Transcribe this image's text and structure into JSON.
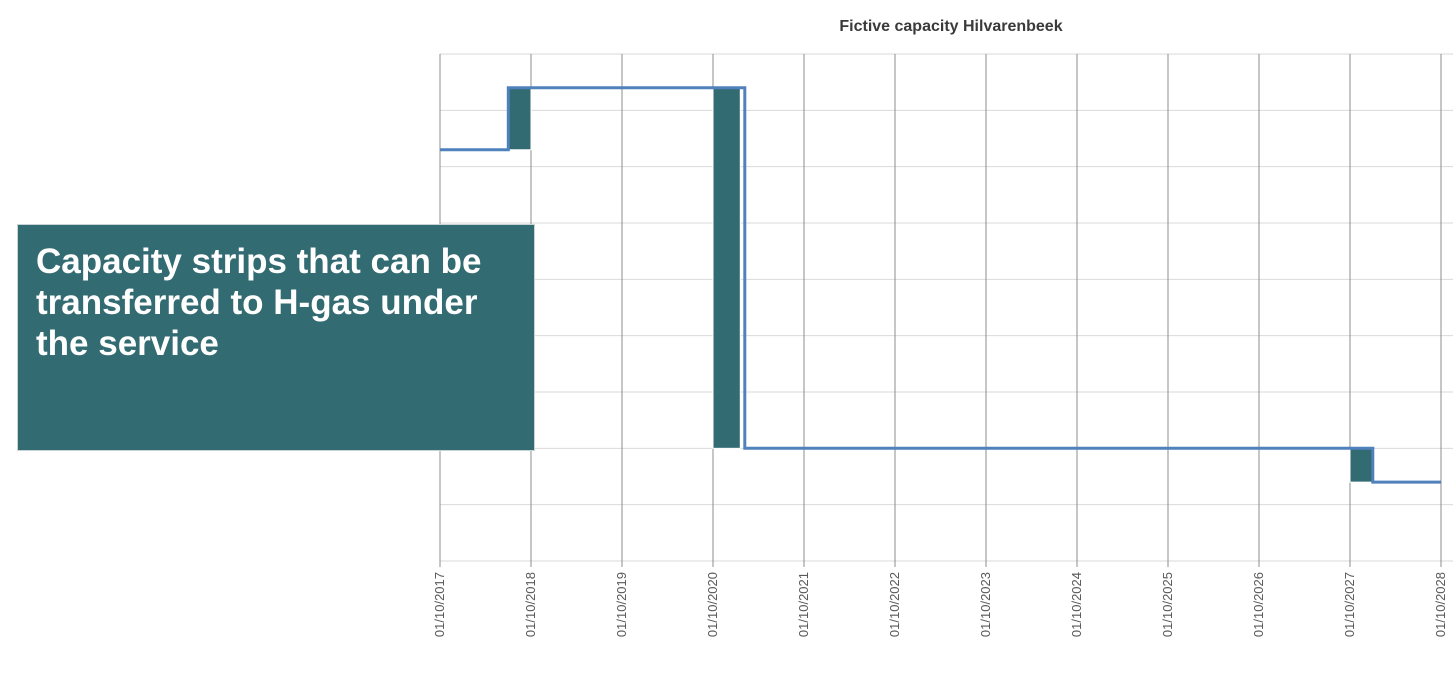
{
  "chart_data": {
    "type": "line",
    "title": "Fictive capacity Hilvarenbeek",
    "xlabel": "",
    "ylabel": "",
    "x_tick_labels": [
      "01/10/2017",
      "01/10/2018",
      "01/10/2019",
      "01/10/2020",
      "01/10/2021",
      "01/10/2022",
      "01/10/2023",
      "01/10/2024",
      "01/10/2025",
      "01/10/2026",
      "01/10/2027",
      "01/10/2028"
    ],
    "x_domain_years": [
      2017.75,
      2028.75
    ],
    "y_range": [
      0,
      9
    ],
    "y_gridlines": 9,
    "grid": true,
    "legend": "none",
    "series": [
      {
        "kind": "step-line",
        "color": "#4f81bd",
        "points": [
          {
            "x": 2017.75,
            "y": 7.3
          },
          {
            "x": 2018.5,
            "y": 7.3
          },
          {
            "x": 2018.5,
            "y": 8.4
          },
          {
            "x": 2021.1,
            "y": 8.4
          },
          {
            "x": 2021.1,
            "y": 2.0
          },
          {
            "x": 2028.0,
            "y": 2.0
          },
          {
            "x": 2028.0,
            "y": 1.4
          },
          {
            "x": 2028.75,
            "y": 1.4
          }
        ]
      }
    ],
    "strips": {
      "color": "#336b72",
      "items": [
        {
          "x0": 2018.5,
          "x1": 2018.75,
          "y0": 7.3,
          "y1": 8.4
        },
        {
          "x0": 2020.75,
          "x1": 2021.05,
          "y0": 2.0,
          "y1": 8.4
        },
        {
          "x0": 2027.75,
          "x1": 2028.0,
          "y0": 1.4,
          "y1": 2.0
        }
      ]
    }
  },
  "callout": {
    "text": "Capacity strips that can be transferred to H-gas under the service",
    "color": "#336b72"
  }
}
